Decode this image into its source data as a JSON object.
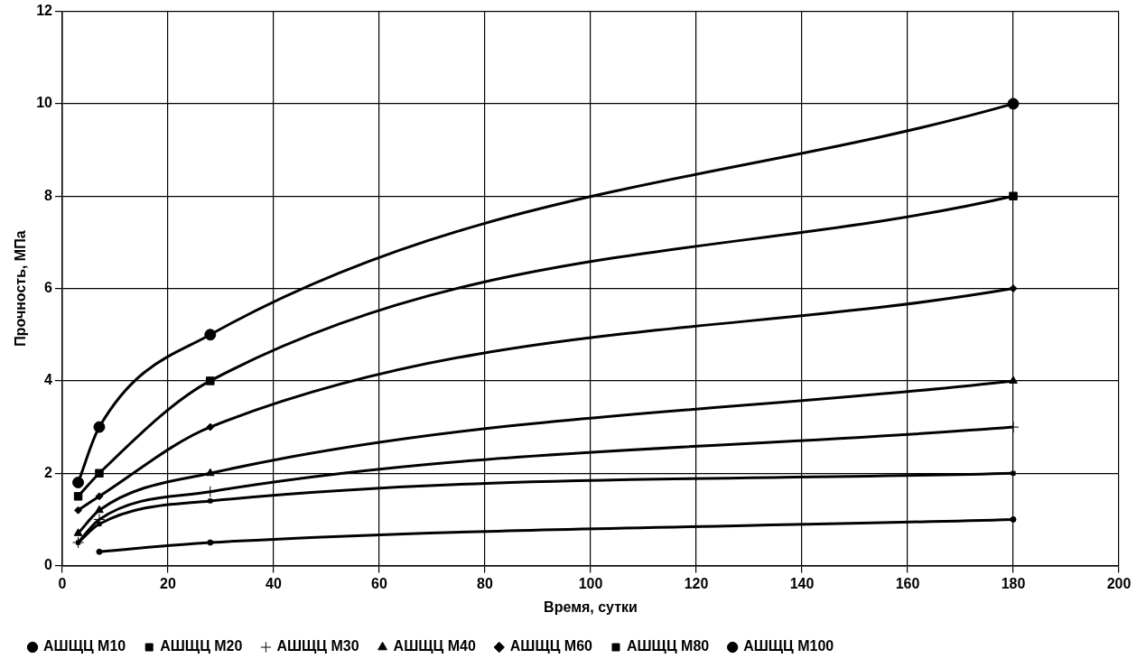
{
  "chart_data": {
    "type": "line",
    "xlabel": "Время, сутки",
    "ylabel": "Прочность, МПа",
    "xlim": [
      0,
      200
    ],
    "xticks": [
      0,
      20,
      40,
      60,
      80,
      100,
      120,
      140,
      160,
      180,
      200
    ],
    "ylim": [
      0,
      12
    ],
    "yticks": [
      0,
      2,
      4,
      6,
      8,
      10,
      12
    ],
    "grid": true,
    "legend": "bottom",
    "line_style": "solid",
    "series": [
      {
        "name": "АШЩЦ М10",
        "color": "#000000",
        "marker": "circle",
        "x": [
          7,
          28,
          180
        ],
        "values": [
          0.3,
          0.5,
          1.0
        ]
      },
      {
        "name": "АШЩЦ М20",
        "color": "#000000",
        "marker": "square",
        "x": [
          3,
          7,
          28,
          180
        ],
        "values": [
          0.5,
          0.9,
          1.4,
          2
        ]
      },
      {
        "name": "АШЩЦ М30",
        "color": "#000000",
        "marker": "cross",
        "x": [
          3,
          7,
          28,
          180
        ],
        "values": [
          0.5,
          1.0,
          1.6,
          3
        ]
      },
      {
        "name": "АШЩЦ М40",
        "color": "#000000",
        "marker": "triangle",
        "x": [
          3,
          7,
          28,
          180
        ],
        "values": [
          0.7,
          1.2,
          2,
          4
        ]
      },
      {
        "name": "АШЩЦ М60",
        "color": "#000000",
        "marker": "diamond",
        "x": [
          3,
          7,
          28,
          180
        ],
        "values": [
          1.2,
          1.5,
          3,
          6
        ]
      },
      {
        "name": "АШЩЦ М80",
        "color": "#000000",
        "marker": "square",
        "x": [
          3,
          7,
          28,
          180
        ],
        "values": [
          1.5,
          2,
          4,
          8
        ]
      },
      {
        "name": "АШЩЦ М100",
        "color": "#000000",
        "marker": "circle",
        "x": [
          3,
          7,
          28,
          180
        ],
        "values": [
          1.8,
          3,
          5,
          10
        ]
      }
    ]
  }
}
